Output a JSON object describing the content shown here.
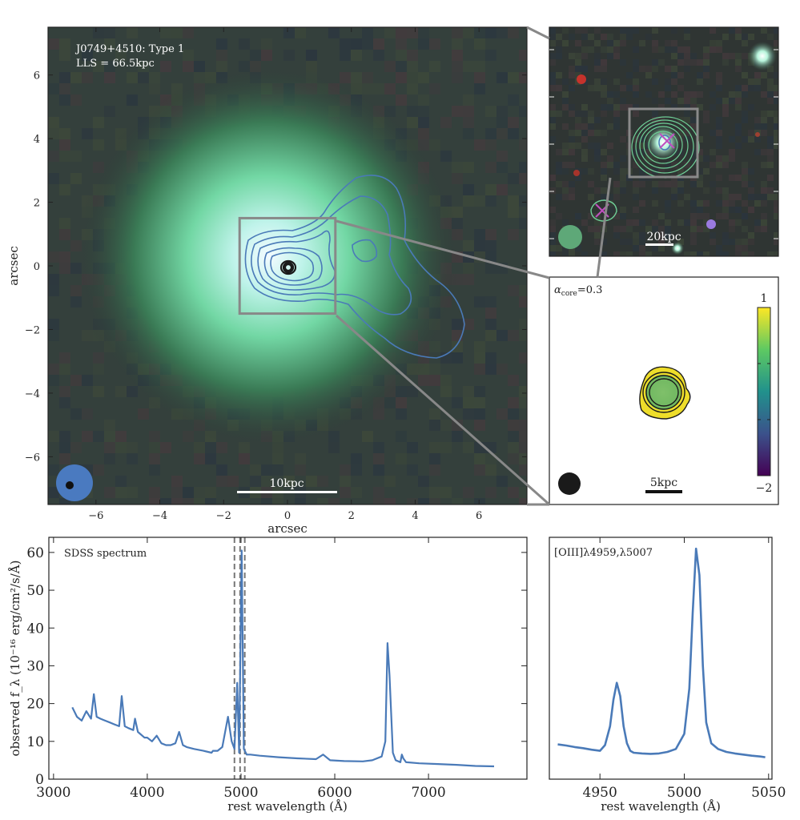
{
  "colors": {
    "line": "#4a7ab8",
    "frame": "#222222",
    "zoom": "#888888",
    "contour_blue": "#4a7ab8",
    "contour_dark": "#1a1a1a",
    "contour_green": "#6fcf97",
    "cross": "#c050c0"
  },
  "chart_data": [
    {
      "id": "image-main",
      "type": "heatmap",
      "title": "J0749+4510: Type 1",
      "subtitle": "LLS = 66.5kpc",
      "xlabel": "arcsec",
      "ylabel": "arcsec",
      "xlim": [
        -7.5,
        7.5
      ],
      "ylim": [
        -7.5,
        7.5
      ],
      "xticks": [
        -6,
        -4,
        -2,
        0,
        2,
        4,
        6
      ],
      "xtick_labels": [
        "−6",
        "−4",
        "−2",
        "0",
        "2",
        "4",
        "6"
      ],
      "yticks": [
        -6,
        -4,
        -2,
        0,
        2,
        4,
        6
      ],
      "ytick_labels": [
        "−6",
        "−4",
        "−2",
        "0",
        "2",
        "4",
        "6"
      ],
      "scalebar": "10kpc",
      "zoom_box": [
        -1.5,
        1.5,
        -1.5,
        1.5
      ]
    },
    {
      "id": "image-wide",
      "type": "heatmap",
      "scalebar": "20kpc"
    },
    {
      "id": "image-core",
      "type": "heatmap",
      "label": "α",
      "label_sub": "core",
      "label_value": "=0.3",
      "scalebar": "5kpc",
      "colorbar": {
        "min": -2,
        "max": 1,
        "top_label": "1",
        "bottom_label": "−2"
      }
    },
    {
      "id": "spectrum-full",
      "type": "line",
      "label": "SDSS spectrum",
      "xlabel": "rest wavelength (Å)",
      "ylabel": "observed f_λ (10⁻¹⁶ erg/cm²/s/Å)",
      "xlim": [
        2950,
        8050
      ],
      "ylim": [
        0,
        64
      ],
      "xticks": [
        3000,
        4000,
        5000,
        6000,
        7000
      ],
      "xtick_labels": [
        "3000",
        "4000",
        "5000",
        "6000",
        "7000"
      ],
      "yticks": [
        0,
        10,
        20,
        30,
        40,
        50,
        60
      ],
      "ytick_labels": [
        "0",
        "10",
        "20",
        "30",
        "40",
        "50",
        "60"
      ],
      "vlines": [
        4930,
        4990,
        5040
      ],
      "x": [
        3200,
        3250,
        3300,
        3350,
        3400,
        3430,
        3460,
        3500,
        3550,
        3600,
        3650,
        3700,
        3727,
        3760,
        3800,
        3850,
        3869,
        3900,
        3970,
        4000,
        4050,
        4101,
        4150,
        4200,
        4250,
        4300,
        4340,
        4380,
        4420,
        4500,
        4600,
        4686,
        4700,
        4750,
        4800,
        4861,
        4900,
        4930,
        4959,
        4980,
        5007,
        5030,
        5060,
        5100,
        5200,
        5400,
        5600,
        5800,
        5876,
        5950,
        6100,
        6300,
        6400,
        6500,
        6540,
        6563,
        6584,
        6620,
        6650,
        6700,
        6716,
        6731,
        6760,
        6900,
        7100,
        7300,
        7500,
        7700
      ],
      "values": [
        19,
        16.5,
        15.5,
        18,
        16,
        22.5,
        16.5,
        16,
        15.5,
        15,
        14.5,
        14,
        22,
        14,
        13.5,
        13,
        16,
        12.5,
        11,
        11,
        10,
        11.5,
        9.5,
        9,
        9,
        9.5,
        12.5,
        9,
        8.5,
        8,
        7.5,
        7,
        7.5,
        7.5,
        8.5,
        16.5,
        10,
        8,
        25.5,
        7,
        60.5,
        8,
        6.5,
        6.5,
        6.2,
        5.8,
        5.5,
        5.3,
        6.5,
        5,
        4.8,
        4.7,
        5,
        6,
        10,
        36,
        27.5,
        7,
        5,
        4.5,
        6.5,
        5.5,
        4.5,
        4.2,
        4,
        3.8,
        3.5,
        3.4
      ]
    },
    {
      "id": "spectrum-oiii",
      "type": "line",
      "label": "[OIII]λ4959,λ5007",
      "xlabel": "rest wavelength (Å)",
      "xlim": [
        4920,
        5052
      ],
      "ylim": [
        0,
        64
      ],
      "xticks": [
        4950,
        5000,
        5050
      ],
      "xtick_labels": [
        "4950",
        "5000",
        "5050"
      ],
      "x": [
        4925,
        4930,
        4935,
        4940,
        4945,
        4950,
        4953,
        4956,
        4958,
        4960,
        4962,
        4964,
        4966,
        4968,
        4970,
        4975,
        4980,
        4985,
        4990,
        4995,
        5000,
        5003,
        5005,
        5007,
        5009,
        5011,
        5013,
        5016,
        5020,
        5025,
        5030,
        5035,
        5040,
        5045,
        5048
      ],
      "values": [
        9.2,
        8.9,
        8.5,
        8.2,
        7.8,
        7.5,
        9,
        14,
        21,
        25.5,
        22,
        14,
        9.5,
        7.5,
        7,
        6.8,
        6.7,
        6.8,
        7.2,
        8,
        12,
        24,
        44,
        61,
        54,
        30,
        15,
        9.5,
        8,
        7.2,
        6.8,
        6.5,
        6.2,
        6,
        5.8
      ]
    }
  ]
}
